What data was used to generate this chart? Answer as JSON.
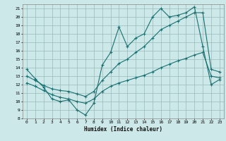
{
  "title": "",
  "xlabel": "Humidex (Indice chaleur)",
  "bg_color": "#cce8e8",
  "line_color": "#1a7070",
  "grid_color": "#99bbbb",
  "xlim": [
    -0.5,
    23.5
  ],
  "ylim": [
    8,
    21.5
  ],
  "xticks": [
    0,
    1,
    2,
    3,
    4,
    5,
    6,
    7,
    8,
    9,
    10,
    11,
    12,
    13,
    14,
    15,
    16,
    17,
    18,
    19,
    20,
    21,
    22,
    23
  ],
  "yticks": [
    8,
    9,
    10,
    11,
    12,
    13,
    14,
    15,
    16,
    17,
    18,
    19,
    20,
    21
  ],
  "line1_x": [
    0,
    1,
    2,
    3,
    4,
    5,
    6,
    7,
    8,
    9,
    10,
    11,
    12,
    13,
    14,
    15,
    16,
    17,
    18,
    19,
    20,
    21,
    22,
    23
  ],
  "line1_y": [
    13.8,
    12.7,
    11.7,
    10.3,
    10.0,
    10.2,
    9.0,
    8.4,
    9.8,
    14.3,
    15.8,
    18.8,
    16.5,
    17.5,
    18.0,
    20.0,
    21.0,
    20.0,
    20.2,
    20.5,
    21.2,
    16.5,
    12.0,
    12.6
  ],
  "line2_x": [
    0,
    1,
    2,
    3,
    4,
    5,
    6,
    7,
    8,
    9,
    10,
    11,
    12,
    13,
    14,
    15,
    16,
    17,
    18,
    19,
    20,
    21,
    22,
    23
  ],
  "line2_y": [
    13.0,
    12.5,
    11.9,
    11.5,
    11.3,
    11.2,
    10.9,
    10.6,
    11.2,
    12.5,
    13.5,
    14.5,
    15.0,
    15.8,
    16.5,
    17.5,
    18.5,
    19.0,
    19.5,
    20.0,
    20.5,
    20.5,
    13.8,
    13.5
  ],
  "line3_x": [
    0,
    1,
    2,
    3,
    4,
    5,
    6,
    7,
    8,
    9,
    10,
    11,
    12,
    13,
    14,
    15,
    16,
    17,
    18,
    19,
    20,
    21,
    22,
    23
  ],
  "line3_y": [
    12.2,
    11.8,
    11.3,
    10.8,
    10.5,
    10.3,
    10.0,
    9.8,
    10.3,
    11.2,
    11.8,
    12.2,
    12.5,
    12.8,
    13.1,
    13.5,
    14.0,
    14.4,
    14.8,
    15.1,
    15.5,
    15.8,
    13.0,
    12.8
  ]
}
